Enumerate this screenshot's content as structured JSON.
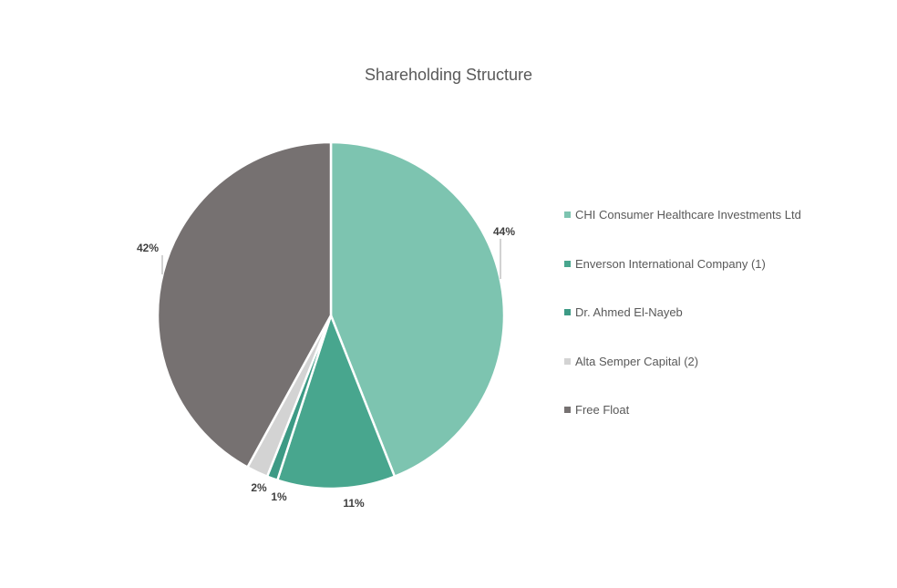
{
  "chart_data": {
    "type": "pie",
    "title": "Shareholding Structure",
    "slices": [
      {
        "label": "CHI Consumer Healthcare Investments Ltd",
        "value": 44,
        "display": "44%",
        "color": "#7DC4B0"
      },
      {
        "label": "Enverson International Company (1)",
        "value": 11,
        "display": "11%",
        "color": "#48A68E"
      },
      {
        "label": "Dr. Ahmed El-Nayeb",
        "value": 1,
        "display": "1%",
        "color": "#3D9A85"
      },
      {
        "label": "Alta Semper Capital (2)",
        "value": 2,
        "display": "2%",
        "color": "#D3D3D3"
      },
      {
        "label": "Free Float",
        "value": 42,
        "display": "42%",
        "color": "#767171"
      }
    ],
    "legend_position": "right"
  }
}
